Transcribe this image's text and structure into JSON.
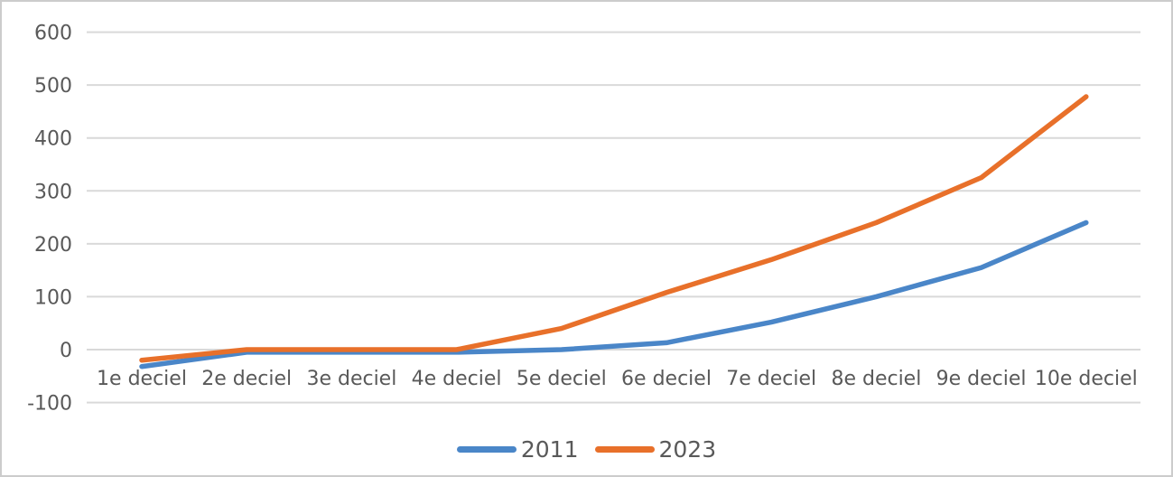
{
  "chart_data": {
    "type": "line",
    "categories": [
      "1e deciel",
      "2e deciel",
      "3e deciel",
      "4e deciel",
      "5e deciel",
      "6e deciel",
      "7e deciel",
      "8e deciel",
      "9e deciel",
      "10e deciel"
    ],
    "series": [
      {
        "name": "2011",
        "color": "#4A86C8",
        "values": [
          -32,
          -5,
          -5,
          -5,
          0,
          13,
          52,
          100,
          155,
          240
        ]
      },
      {
        "name": "2023",
        "color": "#E8702A",
        "values": [
          -20,
          0,
          0,
          0,
          40,
          108,
          170,
          240,
          325,
          478
        ]
      }
    ],
    "y_ticks": [
      600,
      500,
      400,
      300,
      200,
      100,
      0,
      -100
    ],
    "ylim": [
      -100,
      600
    ],
    "grid": true,
    "legend_position": "bottom"
  },
  "colors": {
    "gridline": "#D9D9D9",
    "tick_text": "#595959",
    "background": "#FFFFFF",
    "frame_border": "#CCCCCC"
  }
}
